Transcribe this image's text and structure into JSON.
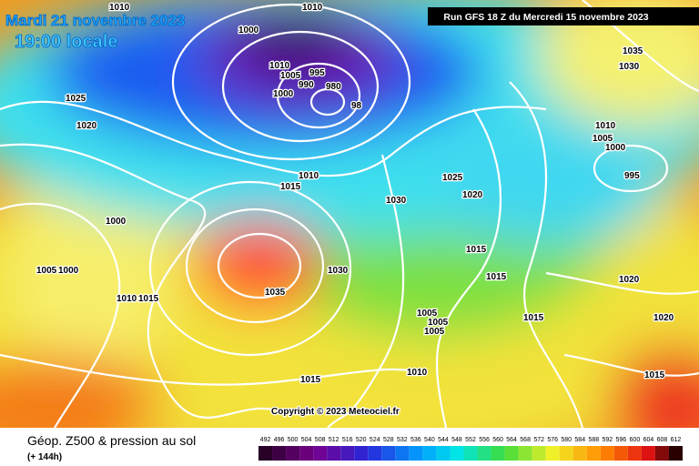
{
  "header": {
    "date": "Mardi 21 novembre 2023",
    "time": "19:00 locale",
    "run": "Run GFS 18 Z du Mercredi 15 novembre 2023"
  },
  "copyright": "Copyright © 2023 Meteociel.fr",
  "footer": {
    "title": "Géop. Z500 & pression au sol",
    "lead": "(+ 144h)"
  },
  "isobars": [
    "1010",
    "1010",
    "1000",
    "1010",
    "1005",
    "995",
    "990",
    "1000",
    "980",
    "98",
    "1025",
    "1020",
    "1035",
    "1030",
    "1010",
    "1005",
    "1000",
    "995",
    "1010",
    "1015",
    "1025",
    "1020",
    "1030",
    "1000",
    "1005",
    "1000",
    "1010",
    "1015",
    "1030",
    "1035",
    "1015",
    "1015",
    "1020",
    "1005",
    "1005",
    "1005",
    "1015",
    "1020",
    "1010",
    "1015",
    "1015"
  ],
  "scale": [
    492,
    496,
    500,
    504,
    508,
    512,
    516,
    520,
    524,
    528,
    532,
    536,
    540,
    544,
    548,
    552,
    556,
    560,
    564,
    568,
    572,
    576,
    580,
    584,
    588,
    592,
    596,
    600,
    604,
    608,
    612
  ]
}
